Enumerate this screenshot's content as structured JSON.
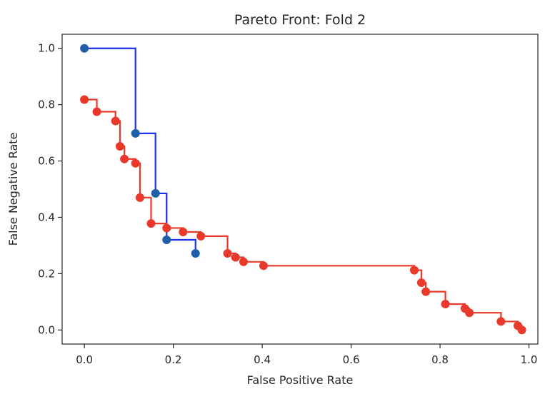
{
  "chart_data": {
    "type": "scatter",
    "title": "Pareto Front: Fold 2",
    "xlabel": "False Positive Rate",
    "ylabel": "False Negative Rate",
    "xlim": [
      -0.05,
      1.02
    ],
    "ylim": [
      -0.05,
      1.05
    ],
    "xticks": [
      0.0,
      0.2,
      0.4,
      0.6,
      0.8,
      1.0
    ],
    "xtick_labels": [
      "0.0",
      "0.2",
      "0.4",
      "0.6",
      "0.8",
      "1.0"
    ],
    "yticks": [
      0.0,
      0.2,
      0.4,
      0.6,
      0.8,
      1.0
    ],
    "ytick_labels": [
      "0.0",
      "0.2",
      "0.4",
      "0.6",
      "0.8",
      "1.0"
    ],
    "grid": false,
    "step_style": "post",
    "series": [
      {
        "color": "#1f2ff0",
        "marker_color": "#1f5fa8",
        "points": [
          [
            0.0,
            1.0
          ],
          [
            0.115,
            0.698
          ],
          [
            0.16,
            0.485
          ],
          [
            0.185,
            0.32
          ],
          [
            0.25,
            0.272
          ]
        ]
      },
      {
        "color": "#e8392b",
        "marker_color": "#e8392b",
        "points": [
          [
            0.0,
            0.818
          ],
          [
            0.028,
            0.775
          ],
          [
            0.07,
            0.742
          ],
          [
            0.08,
            0.652
          ],
          [
            0.09,
            0.607
          ],
          [
            0.115,
            0.592
          ],
          [
            0.125,
            0.47
          ],
          [
            0.15,
            0.378
          ],
          [
            0.185,
            0.362
          ],
          [
            0.222,
            0.348
          ],
          [
            0.262,
            0.333
          ],
          [
            0.322,
            0.272
          ],
          [
            0.34,
            0.258
          ],
          [
            0.358,
            0.242
          ],
          [
            0.403,
            0.228
          ],
          [
            0.742,
            0.212
          ],
          [
            0.758,
            0.168
          ],
          [
            0.768,
            0.136
          ],
          [
            0.812,
            0.092
          ],
          [
            0.856,
            0.076
          ],
          [
            0.866,
            0.061
          ],
          [
            0.937,
            0.03
          ],
          [
            0.975,
            0.015
          ],
          [
            0.984,
            0.0
          ]
        ]
      }
    ]
  }
}
